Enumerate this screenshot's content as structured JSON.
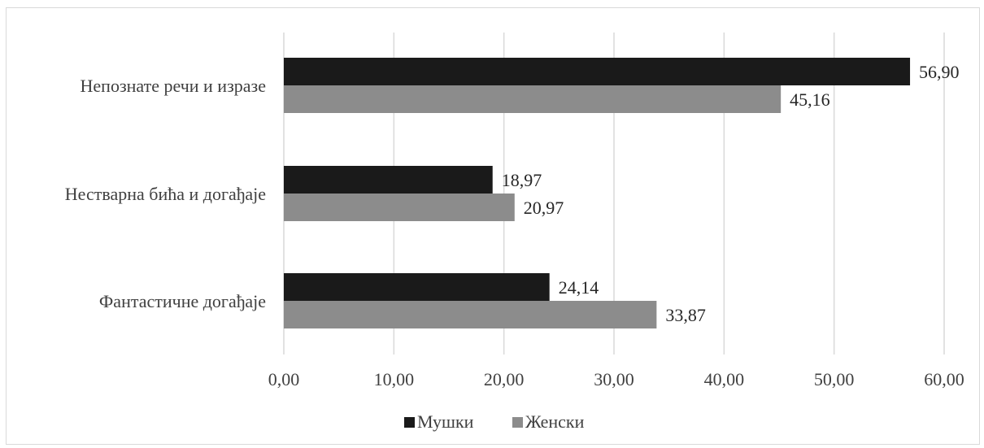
{
  "chart_data": {
    "type": "bar",
    "orientation": "horizontal",
    "categories": [
      "Непознате речи и изразе",
      "Нестварна бића и догађаје",
      "Фантастичне догађаје"
    ],
    "series": [
      {
        "name": "Мушки",
        "values": [
          56.9,
          18.97,
          24.14
        ],
        "labels": [
          "56,90",
          "18,97",
          "24,14"
        ],
        "color": "#1a1a1a"
      },
      {
        "name": "Женски",
        "values": [
          45.16,
          20.97,
          33.87
        ],
        "labels": [
          "45,16",
          "20,97",
          "33,87"
        ],
        "color": "#8c8c8c"
      }
    ],
    "xlim": [
      0,
      60
    ],
    "xticks": [
      0,
      10,
      20,
      30,
      40,
      50,
      60
    ],
    "xtick_labels": [
      "0,00",
      "10,00",
      "20,00",
      "30,00",
      "40,00",
      "50,00",
      "60,00"
    ],
    "title": "",
    "xlabel": "",
    "ylabel": "",
    "grid": "vertical",
    "legend_position": "bottom"
  }
}
